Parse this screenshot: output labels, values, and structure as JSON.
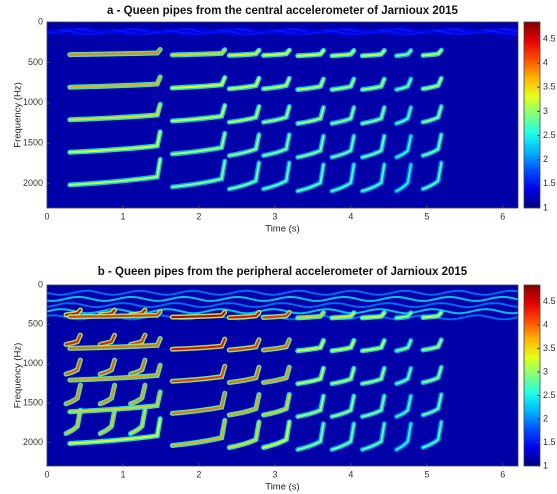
{
  "chart_data": [
    {
      "type": "spectrogram",
      "title": "a - Queen pipes from the central accelerometer of Jarnioux 2015",
      "x_label": "Time (s)",
      "y_label": "Frequency (Hz)",
      "xlim": [
        0,
        6.2
      ],
      "xticks": [
        0,
        1,
        2,
        3,
        4,
        5,
        6
      ],
      "ylim": [
        0,
        2300
      ],
      "yticks": [
        0,
        500,
        1000,
        1500,
        2000
      ],
      "clim": [
        1,
        4.85
      ],
      "cticks": [
        1,
        1.5,
        2,
        2.5,
        3,
        3.5,
        4,
        4.5
      ],
      "colormap": "jet",
      "harmonics": 5,
      "noise_band": {
        "fmin": 100,
        "fmax": 140,
        "level": 1.6
      },
      "syllables": [
        {
          "start": 0.3,
          "end": 1.45,
          "f0": 395,
          "level": 3.9
        },
        {
          "start": 1.65,
          "end": 2.3,
          "f0": 400,
          "level": 3.6
        },
        {
          "start": 2.4,
          "end": 2.75,
          "f0": 405,
          "level": 3.5
        },
        {
          "start": 2.85,
          "end": 3.15,
          "f0": 405,
          "level": 3.4
        },
        {
          "start": 3.3,
          "end": 3.6,
          "f0": 410,
          "level": 3.4
        },
        {
          "start": 3.75,
          "end": 4.0,
          "f0": 410,
          "level": 3.3
        },
        {
          "start": 4.15,
          "end": 4.4,
          "f0": 410,
          "level": 3.3
        },
        {
          "start": 4.6,
          "end": 4.75,
          "f0": 410,
          "level": 3.0
        },
        {
          "start": 4.95,
          "end": 5.15,
          "f0": 405,
          "level": 3.3
        }
      ]
    },
    {
      "type": "spectrogram",
      "title": "b - Queen pipes from the peripheral accelerometer of Jarnioux 2015",
      "x_label": "Time (s)",
      "y_label": "Frequency (Hz)",
      "xlim": [
        0,
        6.2
      ],
      "xticks": [
        0,
        1,
        2,
        3,
        4,
        5,
        6
      ],
      "ylim": [
        0,
        2300
      ],
      "yticks": [
        0,
        500,
        1000,
        1500,
        2000
      ],
      "clim": [
        1,
        4.85
      ],
      "cticks": [
        1,
        1.5,
        2,
        2.5,
        3,
        3.5,
        4,
        4.5
      ],
      "colormap": "jet",
      "harmonics": 5,
      "noise_band": {
        "fmin": 60,
        "fmax": 450,
        "level": 2.4
      },
      "syllables": [
        {
          "start": 0.25,
          "end": 0.4,
          "f0": 370,
          "level": 4.5
        },
        {
          "start": 0.7,
          "end": 0.85,
          "f0": 370,
          "level": 4.5
        },
        {
          "start": 1.1,
          "end": 1.25,
          "f0": 370,
          "level": 4.4
        },
        {
          "start": 0.3,
          "end": 1.45,
          "f0": 395,
          "level": 4.2
        },
        {
          "start": 1.65,
          "end": 2.3,
          "f0": 400,
          "level": 4.6
        },
        {
          "start": 2.4,
          "end": 2.75,
          "f0": 405,
          "level": 4.4
        },
        {
          "start": 2.85,
          "end": 3.15,
          "f0": 405,
          "level": 4.2
        },
        {
          "start": 3.3,
          "end": 3.6,
          "f0": 410,
          "level": 3.6
        },
        {
          "start": 3.75,
          "end": 4.0,
          "f0": 410,
          "level": 3.5
        },
        {
          "start": 4.15,
          "end": 4.4,
          "f0": 410,
          "level": 3.4
        },
        {
          "start": 4.6,
          "end": 4.75,
          "f0": 410,
          "level": 3.1
        },
        {
          "start": 4.95,
          "end": 5.15,
          "f0": 405,
          "level": 3.3
        }
      ]
    }
  ]
}
